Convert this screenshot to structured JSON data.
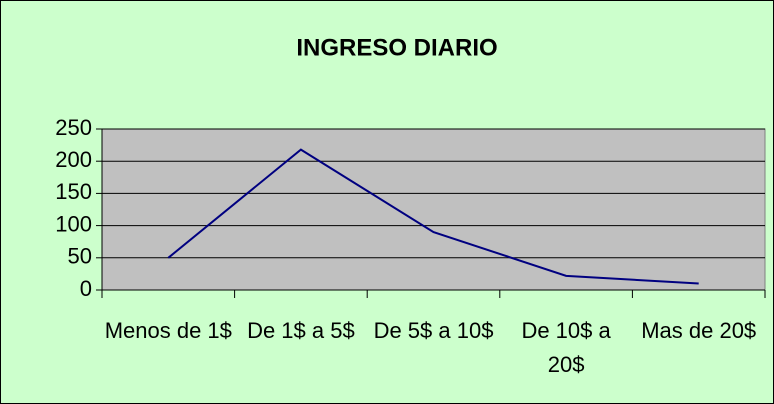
{
  "chart_data": {
    "type": "line",
    "title": "INGRESO DIARIO",
    "categories": [
      "Menos de 1$",
      "De 1$ a 5$",
      "De 5$ a 10$",
      "De 10$ a 20$",
      "Mas de 20$"
    ],
    "values": [
      50,
      218,
      90,
      22,
      10
    ],
    "color": "#000080",
    "ylim": [
      0,
      250
    ],
    "yticks": [
      0,
      50,
      100,
      150,
      200,
      250
    ],
    "grid": true
  }
}
